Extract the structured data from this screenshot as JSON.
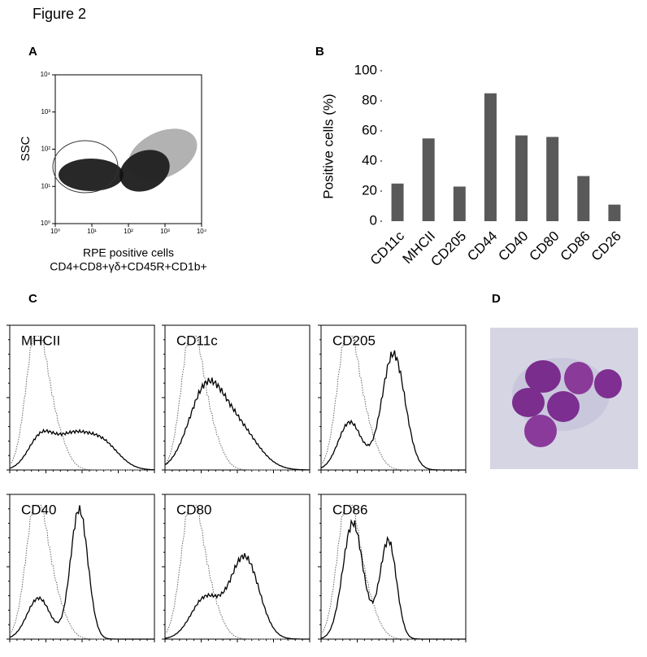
{
  "title": "Figure 2",
  "chart_data": [
    {
      "type": "scatter",
      "panel_label": "A",
      "y_label": "SSC",
      "x_label": [
        "RPE positive cells",
        "CD4+CD8+γδ+CD45R+CD1b+"
      ],
      "log_scale": true,
      "xlim": [
        1,
        10000
      ],
      "ylim": [
        1,
        10000
      ],
      "xticks": [
        {
          "value": 1,
          "label": "10⁰"
        },
        {
          "value": 10,
          "label": "10¹"
        },
        {
          "value": 100,
          "label": "10²"
        },
        {
          "value": 1000,
          "label": "10³"
        },
        {
          "value": 10000,
          "label": "10⁴"
        }
      ],
      "yticks": [
        {
          "value": 1,
          "label": "10⁰"
        },
        {
          "value": 10,
          "label": "10¹"
        },
        {
          "value": 100,
          "label": "10²"
        },
        {
          "value": 1000,
          "label": "10³"
        },
        {
          "value": 10000,
          "label": "10⁴"
        }
      ]
    },
    {
      "type": "bar",
      "panel_label": "B",
      "y_label": "Positive cells (%)",
      "categories": [
        "CD11c",
        "MHCII",
        "CD205",
        "CD44",
        "CD40",
        "CD80",
        "CD86",
        "CD26"
      ],
      "values": [
        25,
        55,
        23,
        85,
        57,
        56,
        30,
        11
      ],
      "color": "#595959",
      "ylim": [
        0,
        100
      ],
      "yticks": [
        0,
        20,
        40,
        60,
        80,
        100
      ]
    }
  ],
  "histograms": {
    "panel_label": "C",
    "labels": [
      "MHCII",
      "CD11c",
      "CD205",
      "CD40",
      "CD80",
      "CD86"
    ]
  },
  "micrograph": {
    "panel_label": "D"
  }
}
